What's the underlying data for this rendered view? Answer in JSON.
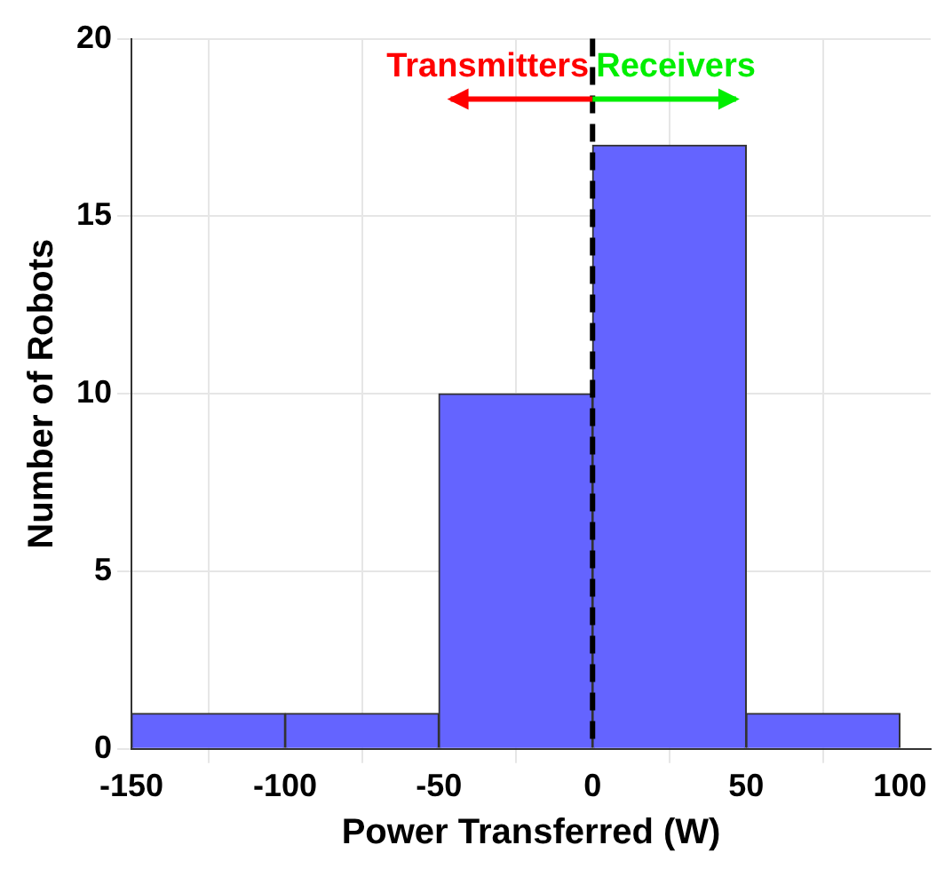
{
  "chart_data": {
    "type": "histogram",
    "xlabel": "Power Transferred (W)",
    "ylabel": "Number of Robots",
    "bins": [
      -150,
      -100,
      -50,
      0,
      50,
      100
    ],
    "values": [
      1,
      1,
      10,
      17,
      1
    ],
    "color": "#6464ff",
    "xlim": [
      -150,
      110
    ],
    "xticks": [
      -150,
      -100,
      -50,
      0,
      50,
      100
    ],
    "ylim": [
      0,
      20
    ],
    "yticks": [
      0,
      5,
      10,
      15,
      20
    ],
    "grid": true,
    "ref_lines": [
      {
        "axis": "x",
        "value": 0,
        "color": "#000000",
        "line_style": "dashed"
      }
    ],
    "annotations": [
      "Transmitters",
      "Receivers"
    ]
  }
}
